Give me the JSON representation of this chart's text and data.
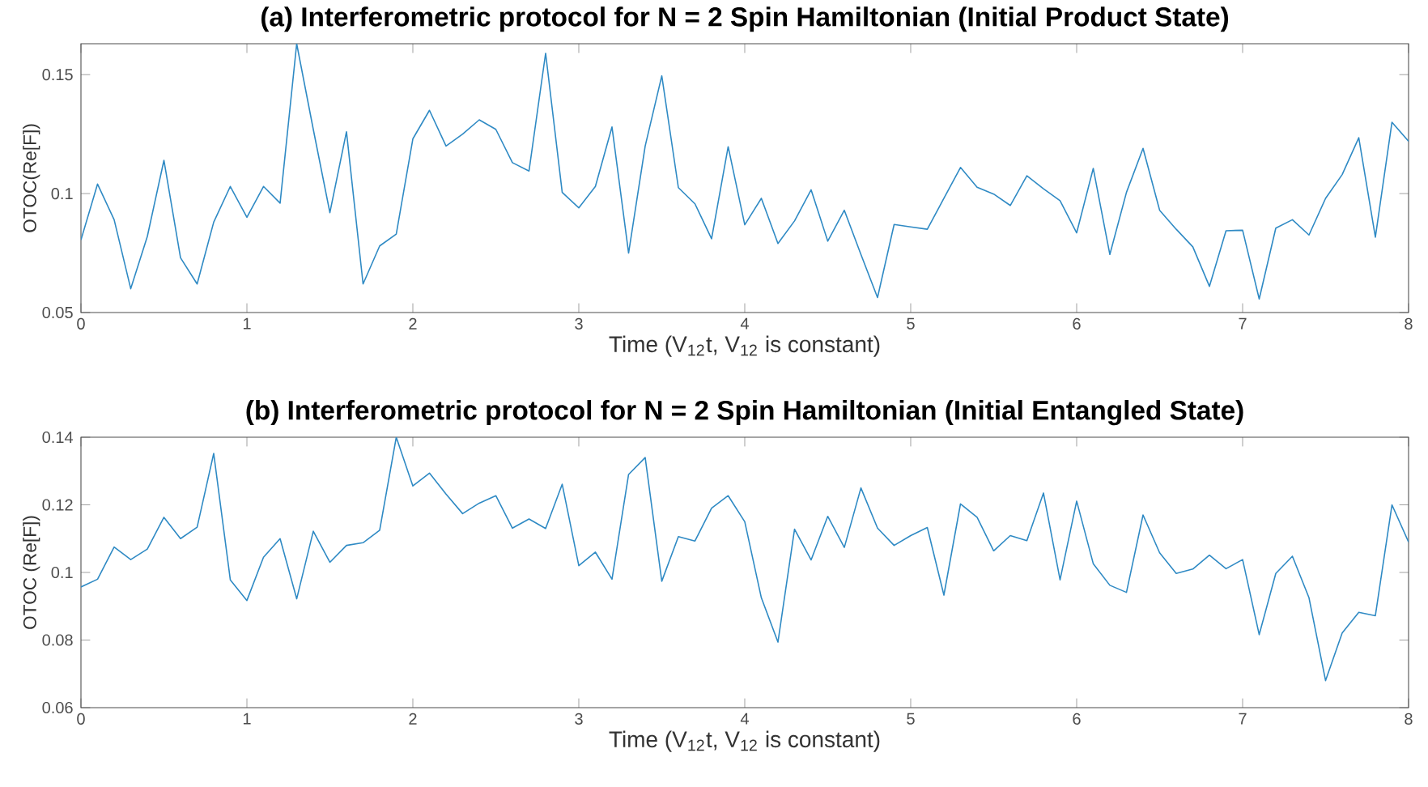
{
  "chart_data": [
    {
      "type": "line",
      "title": "(a) Interferometric protocol for N = 2 Spin Hamiltonian (Initial Product State)",
      "xlabel": "Time (V$_{12}$t, V$_{12}$ is constant)",
      "ylabel": "OTOC(Re[F])",
      "x": [
        0,
        0.1,
        0.2,
        0.3,
        0.4,
        0.5,
        0.6,
        0.7,
        0.8,
        0.9,
        1,
        1.1,
        1.2,
        1.3,
        1.4,
        1.5,
        1.6,
        1.7,
        1.8,
        1.9,
        2,
        2.1,
        2.2,
        2.3,
        2.4,
        2.5,
        2.6,
        2.7,
        2.8,
        2.9,
        3,
        3.1,
        3.2,
        3.3,
        3.4,
        3.5,
        3.6,
        3.7,
        3.8,
        3.9,
        4,
        4.1,
        4.2,
        4.3,
        4.4,
        4.5,
        4.6,
        4.7,
        4.8,
        4.9,
        5,
        5.1,
        5.2,
        5.3,
        5.4,
        5.5,
        5.6,
        5.7,
        5.8,
        5.9,
        6,
        6.1,
        6.2,
        6.3,
        6.4,
        6.5,
        6.6,
        6.7,
        6.8,
        6.9,
        7,
        7.1,
        7.2,
        7.3,
        7.4,
        7.5,
        7.6,
        7.7,
        7.8,
        7.9,
        8
      ],
      "series": [
        {
          "color": "#2f8ac4",
          "values": [
            0.0805,
            0.104,
            0.089,
            0.06,
            0.082,
            0.114,
            0.073,
            0.062,
            0.088,
            0.103,
            0.09,
            0.103,
            0.096,
            0.163,
            0.127,
            0.092,
            0.126,
            0.062,
            0.078,
            0.083,
            0.123,
            0.135,
            0.12,
            0.125,
            0.131,
            0.127,
            0.113,
            0.1095,
            0.159,
            0.1005,
            0.094,
            0.103,
            0.128,
            0.075,
            0.12,
            0.1495,
            0.1025,
            0.0957,
            0.081,
            0.1197,
            0.0869,
            0.098,
            0.079,
            0.0885,
            0.1016,
            0.08,
            0.093,
            0.0744,
            0.0563,
            0.087,
            0.086,
            0.085,
            0.098,
            0.111,
            0.1027,
            0.0998,
            0.095,
            0.1075,
            0.102,
            0.097,
            0.0835,
            0.1106,
            0.0744,
            0.1005,
            0.119,
            0.093,
            0.085,
            0.0776,
            0.061,
            0.0844,
            0.0846,
            0.0557,
            0.0855,
            0.089,
            0.0826,
            0.098,
            0.108,
            0.1235,
            0.0817,
            0.13,
            0.122
          ]
        }
      ],
      "xlim": [
        0,
        8
      ],
      "ylim": [
        0.05,
        0.163
      ],
      "xticks": [
        0,
        1,
        2,
        3,
        4,
        5,
        6,
        7,
        8
      ],
      "yticks": [
        0.05,
        0.1,
        0.15
      ]
    },
    {
      "type": "line",
      "title": "(b) Interferometric protocol for N = 2 Spin Hamiltonian (Initial Entangled State)",
      "xlabel": "Time (V$_{12}$t, V$_{12}$ is constant)",
      "ylabel": "OTOC (Re[F])",
      "x": [
        0,
        0.1,
        0.2,
        0.3,
        0.4,
        0.5,
        0.6,
        0.7,
        0.8,
        0.9,
        1,
        1.1,
        1.2,
        1.3,
        1.4,
        1.5,
        1.6,
        1.7,
        1.8,
        1.9,
        2,
        2.1,
        2.2,
        2.3,
        2.4,
        2.5,
        2.6,
        2.7,
        2.8,
        2.9,
        3,
        3.1,
        3.2,
        3.3,
        3.4,
        3.5,
        3.6,
        3.7,
        3.8,
        3.9,
        4,
        4.1,
        4.2,
        4.3,
        4.4,
        4.5,
        4.6,
        4.7,
        4.8,
        4.9,
        5,
        5.1,
        5.2,
        5.3,
        5.4,
        5.5,
        5.6,
        5.7,
        5.8,
        5.9,
        6,
        6.1,
        6.2,
        6.3,
        6.4,
        6.5,
        6.6,
        6.7,
        6.8,
        6.9,
        7,
        7.1,
        7.2,
        7.3,
        7.4,
        7.5,
        7.6,
        7.7,
        7.8,
        7.9,
        8
      ],
      "series": [
        {
          "color": "#2f8ac4",
          "values": [
            0.0957,
            0.098,
            0.1075,
            0.1038,
            0.1069,
            0.1163,
            0.11,
            0.1134,
            0.1352,
            0.0978,
            0.0917,
            0.1045,
            0.11,
            0.0922,
            0.1122,
            0.103,
            0.108,
            0.1088,
            0.1125,
            0.14,
            0.1256,
            0.1294,
            0.1232,
            0.1174,
            0.1205,
            0.1227,
            0.1131,
            0.1158,
            0.113,
            0.1261,
            0.102,
            0.106,
            0.098,
            0.129,
            0.134,
            0.0974,
            0.1106,
            0.1093,
            0.119,
            0.1227,
            0.115,
            0.0925,
            0.0794,
            0.1128,
            0.1037,
            0.1166,
            0.1074,
            0.125,
            0.1131,
            0.108,
            0.1109,
            0.1133,
            0.0933,
            0.1203,
            0.1163,
            0.1064,
            0.1109,
            0.1094,
            0.1235,
            0.0978,
            0.1211,
            0.1026,
            0.0962,
            0.0941,
            0.117,
            0.1058,
            0.0997,
            0.101,
            0.1051,
            0.1011,
            0.1038,
            0.0816,
            0.0997,
            0.1048,
            0.0925,
            0.068,
            0.0821,
            0.0882,
            0.0872,
            0.12,
            0.109
          ]
        }
      ],
      "xlim": [
        0,
        8
      ],
      "ylim": [
        0.06,
        0.14
      ],
      "xticks": [
        0,
        1,
        2,
        3,
        4,
        5,
        6,
        7,
        8
      ],
      "yticks": [
        0.06,
        0.08,
        0.1,
        0.12,
        0.14
      ]
    }
  ]
}
